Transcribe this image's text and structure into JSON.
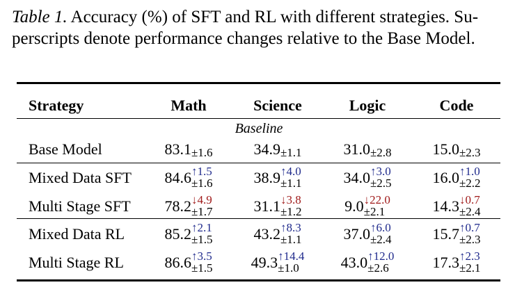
{
  "caption": {
    "label": "Table 1.",
    "line1_rest": " Accuracy (%) of SFT and RL with different strategies. Su-",
    "line2": "perscripts denote performance changes relative to the Base Model."
  },
  "table": {
    "headers": [
      "Strategy",
      "Math",
      "Science",
      "Logic",
      "Code"
    ],
    "section_label": "Baseline",
    "rows": [
      {
        "strategy": "Base Model",
        "cells": [
          {
            "value": "83.1",
            "std": "±1.6"
          },
          {
            "value": "34.9",
            "std": "±1.1"
          },
          {
            "value": "31.0",
            "std": "±2.8"
          },
          {
            "value": "15.0",
            "std": "±2.3"
          }
        ]
      },
      {
        "strategy": "Mixed Data SFT",
        "cells": [
          {
            "value": "84.6",
            "delta": "↑1.5",
            "dir": "up",
            "std": "±1.6"
          },
          {
            "value": "38.9",
            "delta": "↑4.0",
            "dir": "up",
            "std": "±1.1"
          },
          {
            "value": "34.0",
            "delta": "↑3.0",
            "dir": "up",
            "std": "±2.5"
          },
          {
            "value": "16.0",
            "delta": "↑1.0",
            "dir": "up",
            "std": "±2.2"
          }
        ]
      },
      {
        "strategy": "Multi Stage SFT",
        "cells": [
          {
            "value": "78.2",
            "delta": "↓4.9",
            "dir": "down",
            "std": "±1.7"
          },
          {
            "value": "31.1",
            "delta": "↓3.8",
            "dir": "down",
            "std": "±1.2"
          },
          {
            "value": "9.0",
            "delta": "↓22.0",
            "dir": "down",
            "std": "±2.1"
          },
          {
            "value": "14.3",
            "delta": "↓0.7",
            "dir": "down",
            "std": "±2.4"
          }
        ]
      },
      {
        "strategy": "Mixed Data RL",
        "cells": [
          {
            "value": "85.2",
            "delta": "↑2.1",
            "dir": "up",
            "std": "±1.5"
          },
          {
            "value": "43.2",
            "delta": "↑8.3",
            "dir": "up",
            "std": "±1.1"
          },
          {
            "value": "37.0",
            "delta": "↑6.0",
            "dir": "up",
            "std": "±2.4"
          },
          {
            "value": "15.7",
            "delta": "↑0.7",
            "dir": "up",
            "std": "±2.3"
          }
        ]
      },
      {
        "strategy": "Multi Stage RL",
        "cells": [
          {
            "value": "86.6",
            "delta": "↑3.5",
            "dir": "up",
            "std": "±1.5"
          },
          {
            "value": "49.3",
            "delta": "↑14.4",
            "dir": "up",
            "std": "±1.0"
          },
          {
            "value": "43.0",
            "delta": "↑12.0",
            "dir": "up",
            "std": "±2.6"
          },
          {
            "value": "17.3",
            "delta": "↑2.3",
            "dir": "up",
            "std": "±2.1"
          }
        ]
      }
    ]
  }
}
